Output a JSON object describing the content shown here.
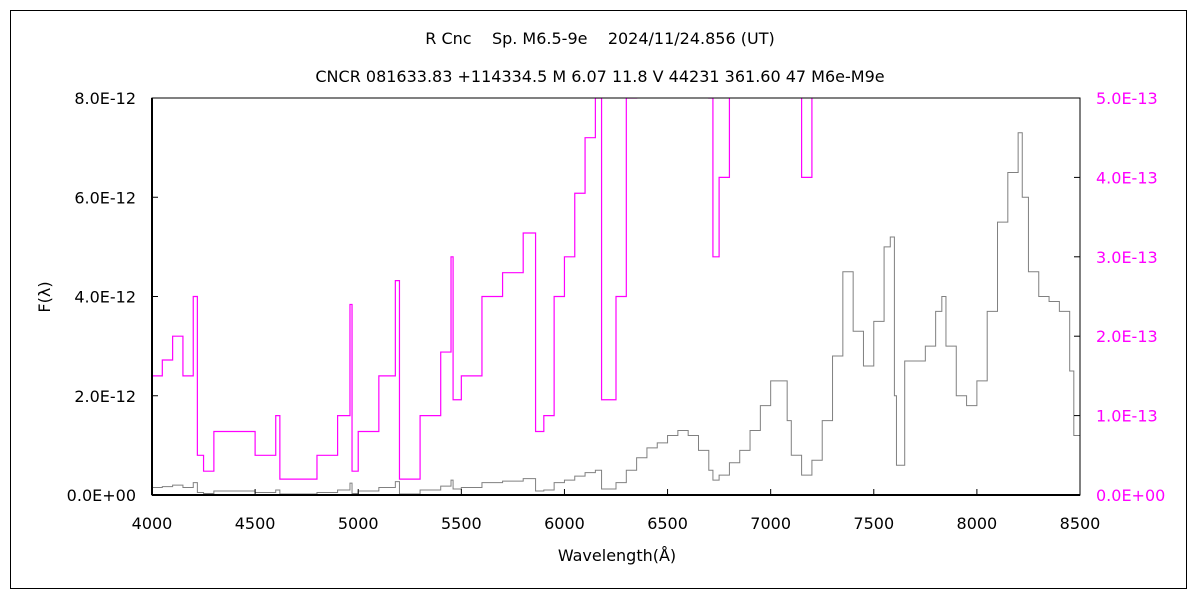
{
  "chart_data": {
    "type": "line",
    "title": "R Cnc    Sp. M6.5-9e    2024/11/24.856 (UT)",
    "subtitle": "CNCR 081633.83 +114334.5 M 6.07 11.8 V 44231 361.60 47 M6e-M9e",
    "xlabel": "Wavelength(Å)",
    "ylabel": "F(λ)",
    "xlim": [
      4000,
      8500
    ],
    "ylim": [
      0,
      8e-12
    ],
    "y2lim": [
      0,
      5e-13
    ],
    "x_ticks": [
      "4000",
      "4500",
      "5000",
      "5500",
      "6000",
      "6500",
      "7000",
      "7500",
      "8000",
      "8500"
    ],
    "y_ticks": [
      "0.0E+00",
      "2.0E-12",
      "4.0E-12",
      "6.0E-12",
      "8.0E-12"
    ],
    "y2_ticks": [
      "0.0E+00",
      "1.0E-13",
      "2.0E-13",
      "3.0E-13",
      "4.0E-13",
      "5.0E-13"
    ],
    "grid": false,
    "colors": {
      "left_axis_series": "#808080",
      "right_axis_series": "#ff00ff",
      "right_axis_text": "#ff00ff"
    },
    "series": [
      {
        "axis": "left and right (same spectrum drawn on both scales)",
        "unit_scale": "1E-12",
        "x": [
          4000,
          4050,
          4100,
          4150,
          4200,
          4220,
          4250,
          4300,
          4400,
          4500,
          4550,
          4600,
          4620,
          4700,
          4750,
          4800,
          4900,
          4960,
          4970,
          5000,
          5100,
          5180,
          5200,
          5300,
          5400,
          5450,
          5460,
          5500,
          5600,
          5700,
          5800,
          5830,
          5860,
          5900,
          5950,
          6000,
          6050,
          6100,
          6150,
          6180,
          6200,
          6250,
          6300,
          6350,
          6400,
          6450,
          6500,
          6550,
          6600,
          6650,
          6700,
          6720,
          6750,
          6800,
          6850,
          6900,
          6950,
          7000,
          7050,
          7080,
          7100,
          7150,
          7200,
          7250,
          7300,
          7350,
          7400,
          7450,
          7500,
          7550,
          7580,
          7600,
          7610,
          7650,
          7700,
          7750,
          7800,
          7830,
          7850,
          7900,
          7950,
          8000,
          8050,
          8100,
          8150,
          8200,
          8220,
          8250,
          8300,
          8350,
          8400,
          8450,
          8470,
          8500
        ],
        "y": [
          0.15,
          0.17,
          0.2,
          0.15,
          0.25,
          0.05,
          0.03,
          0.08,
          0.08,
          0.05,
          0.05,
          0.1,
          0.02,
          0.02,
          0.02,
          0.05,
          0.1,
          0.24,
          0.03,
          0.08,
          0.15,
          0.27,
          0.02,
          0.1,
          0.18,
          0.3,
          0.12,
          0.15,
          0.25,
          0.28,
          0.33,
          0.33,
          0.08,
          0.1,
          0.25,
          0.3,
          0.38,
          0.45,
          0.5,
          0.12,
          0.12,
          0.25,
          0.5,
          0.75,
          0.95,
          1.05,
          1.2,
          1.3,
          1.2,
          0.9,
          0.5,
          0.3,
          0.4,
          0.65,
          0.9,
          1.3,
          1.8,
          2.3,
          2.3,
          1.5,
          0.8,
          0.4,
          0.7,
          1.5,
          2.8,
          4.5,
          3.3,
          2.6,
          3.5,
          5.0,
          5.2,
          2.0,
          0.6,
          2.7,
          2.7,
          3.0,
          3.7,
          4.0,
          3.0,
          2.0,
          1.8,
          2.3,
          3.7,
          5.5,
          6.5,
          7.3,
          6.0,
          4.5,
          4.0,
          3.9,
          3.7,
          2.5,
          1.2,
          1.5
        ]
      }
    ]
  }
}
